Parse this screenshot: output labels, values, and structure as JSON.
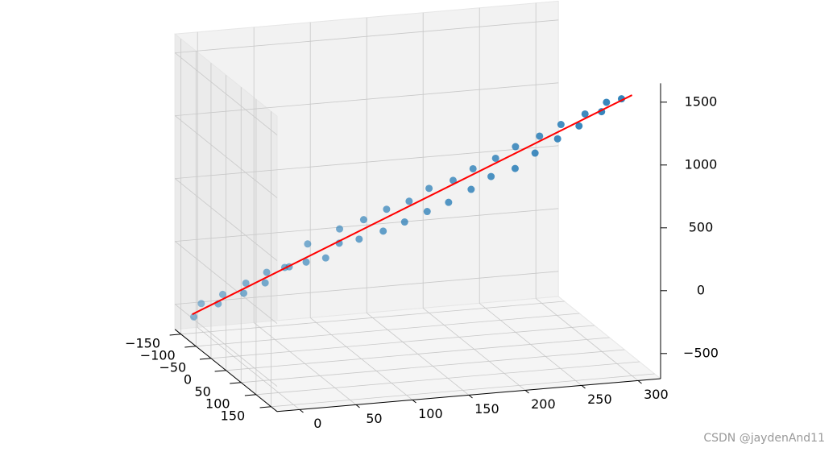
{
  "chart_data": {
    "type": "scatter3d",
    "series": [
      {
        "color": "#1f77b4",
        "mode": "markers",
        "x": [
          -10,
          -2,
          5,
          13,
          21,
          29,
          36,
          44,
          52,
          60,
          67,
          75,
          83,
          91,
          98,
          106,
          114,
          122,
          129,
          137,
          145,
          153,
          160,
          168,
          176,
          184,
          191,
          199,
          207,
          215,
          222,
          230,
          238,
          246,
          253,
          261,
          269,
          277,
          284,
          292
        ],
        "y": [
          -145,
          -150,
          -120,
          -135,
          -95,
          -118,
          -80,
          -105,
          -75,
          -90,
          -60,
          -85,
          -55,
          -40,
          -65,
          -30,
          -45,
          -10,
          -25,
          5,
          -10,
          20,
          0,
          35,
          20,
          50,
          30,
          60,
          45,
          80,
          55,
          90,
          75,
          105,
          90,
          120,
          110,
          135,
          125,
          145
        ],
        "z": [
          -560,
          -470,
          -420,
          -380,
          -300,
          -270,
          -200,
          -170,
          -80,
          -110,
          -20,
          70,
          10,
          150,
          210,
          190,
          310,
          280,
          420,
          370,
          500,
          470,
          610,
          560,
          700,
          680,
          800,
          790,
          900,
          880,
          1000,
          1010,
          1110,
          1140,
          1220,
          1260,
          1330,
          1390,
          1440,
          1500
        ]
      },
      {
        "color": "#ff0000",
        "mode": "line",
        "x": [
          -10,
          300
        ],
        "y": [
          -150,
          150
        ],
        "z": [
          -550,
          1533
        ]
      }
    ],
    "xlim": [
      -20,
      320
    ],
    "ylim": [
      -170,
      170
    ],
    "zlim": [
      -700,
      1650
    ],
    "xticks": [
      0,
      50,
      100,
      150,
      200,
      250,
      300
    ],
    "yticks": [
      {
        "value": -150,
        "label": "−150"
      },
      {
        "value": -100,
        "label": "−100"
      },
      {
        "value": -50,
        "label": "−50"
      },
      0,
      50,
      100,
      150
    ],
    "zticks": [
      {
        "value": -500,
        "label": "−500"
      },
      0,
      500,
      1000,
      1500
    ],
    "grid": true,
    "watermark": "CSDN @jaydenAnd11"
  }
}
